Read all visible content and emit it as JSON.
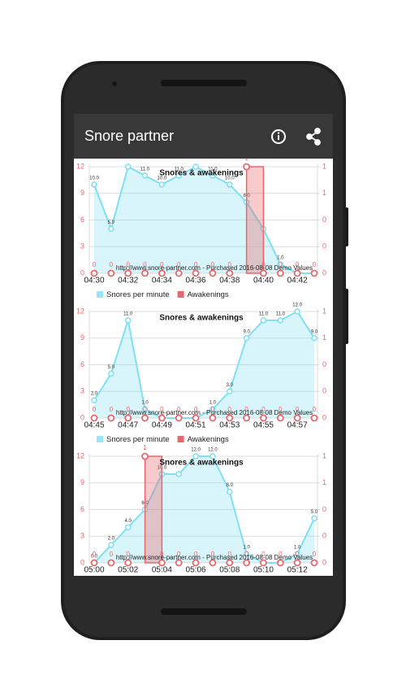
{
  "app_bar": {
    "title": "Snore partner"
  },
  "chart_data": [
    {
      "type": "line",
      "title": "Snores & awakenings",
      "watermark": "http://www.snore-partner.com - Purchased 2016-08-08 Demo Values",
      "categories": [
        "04:30",
        null,
        "04:32",
        null,
        "04:34",
        null,
        "04:36",
        null,
        "04:38",
        null,
        "04:40",
        null,
        "04:42",
        null
      ],
      "series": [
        {
          "name": "Snores per minute",
          "kind": "area",
          "color": "#7fdff3",
          "values": [
            10,
            5,
            12,
            11,
            10,
            11,
            12,
            11,
            10,
            8,
            5,
            1,
            0,
            0
          ],
          "value_labels": [
            "10.0",
            "5.0",
            null,
            "11.0",
            "10.0",
            "11.0",
            null,
            "11.0",
            "10.0",
            "8.0",
            null,
            "1.0",
            null,
            null
          ]
        },
        {
          "name": "Awakenings",
          "kind": "bar",
          "axis": "y2",
          "color": "#e8676b",
          "values": [
            0,
            0,
            0,
            0,
            0,
            0,
            0,
            0,
            0,
            1,
            0,
            0,
            0,
            0
          ]
        }
      ],
      "ylim": [
        0,
        12
      ],
      "yticks": [
        0,
        3,
        6,
        9,
        12
      ],
      "y2lim": [
        0,
        1
      ],
      "y2ticks": [
        0,
        {
          "value": 0.25,
          "label": "0"
        },
        {
          "value": 0.5,
          "label": "0"
        },
        {
          "value": 0.75,
          "label": "1"
        },
        1
      ],
      "grid": true,
      "legend": true
    },
    {
      "type": "line",
      "title": "Snores & awakenings",
      "watermark": "http://www.snore-partner.com - Purchased 2016-08-08 Demo Values",
      "categories": [
        "04:45",
        null,
        "04:47",
        null,
        "04:49",
        null,
        "04:51",
        null,
        "04:53",
        null,
        "04:55",
        null,
        "04:57",
        null
      ],
      "series": [
        {
          "name": "Snores per minute",
          "kind": "area",
          "color": "#7fdff3",
          "values": [
            2,
            5,
            11,
            1,
            0,
            0,
            0,
            1,
            3,
            9,
            11,
            11,
            12,
            9
          ],
          "value_labels": [
            "2.0",
            "5.0",
            "11.0",
            "1.0",
            null,
            null,
            null,
            "1.0",
            "3.0",
            "9.0",
            "11.0",
            "11.0",
            "12.0",
            "9.0"
          ]
        },
        {
          "name": "Awakenings",
          "kind": "bar",
          "axis": "y2",
          "color": "#e8676b",
          "values": [
            0,
            0,
            0,
            0,
            0,
            0,
            0,
            0,
            0,
            0,
            0,
            0,
            0,
            0
          ]
        }
      ],
      "ylim": [
        0,
        12
      ],
      "yticks": [
        0,
        3,
        6,
        9,
        12
      ],
      "y2lim": [
        0,
        1
      ],
      "y2ticks": [
        0,
        {
          "value": 0.25,
          "label": "0"
        },
        {
          "value": 0.5,
          "label": "0"
        },
        {
          "value": 0.75,
          "label": "1"
        },
        1
      ],
      "grid": true,
      "legend": true
    },
    {
      "type": "line",
      "title": "Snores & awakenings",
      "watermark": "http://www.snore-partner.com - Purchased 2016-08-08 Demo Values",
      "categories": [
        "05:00",
        null,
        "05:02",
        null,
        "05:04",
        null,
        "05:06",
        null,
        "05:08",
        null,
        "05:10",
        null,
        "05:12",
        null
      ],
      "series": [
        {
          "name": "Snores per minute",
          "kind": "area",
          "color": "#7fdff3",
          "values": [
            0,
            2,
            4,
            6,
            10,
            10,
            12,
            12,
            8,
            1,
            0,
            0,
            1,
            5
          ],
          "value_labels": [
            "0.0",
            "2.0",
            "4.0",
            "6.0",
            "10.0",
            null,
            "12.0",
            "12.0",
            "8.0",
            "1.0",
            null,
            null,
            "1.0",
            "5.0"
          ]
        },
        {
          "name": "Awakenings",
          "kind": "bar",
          "axis": "y2",
          "color": "#e8676b",
          "values": [
            0,
            0,
            0,
            1,
            0,
            0,
            0,
            0,
            0,
            0,
            0,
            0,
            0,
            0
          ]
        }
      ],
      "ylim": [
        0,
        12
      ],
      "yticks": [
        0,
        3,
        6,
        9,
        12
      ],
      "y2lim": [
        0,
        1
      ],
      "y2ticks": [
        0,
        {
          "value": 0.25,
          "label": "0"
        },
        {
          "value": 0.5,
          "label": "0"
        },
        {
          "value": 0.75,
          "label": "1"
        },
        1
      ],
      "grid": true,
      "legend": false
    }
  ]
}
